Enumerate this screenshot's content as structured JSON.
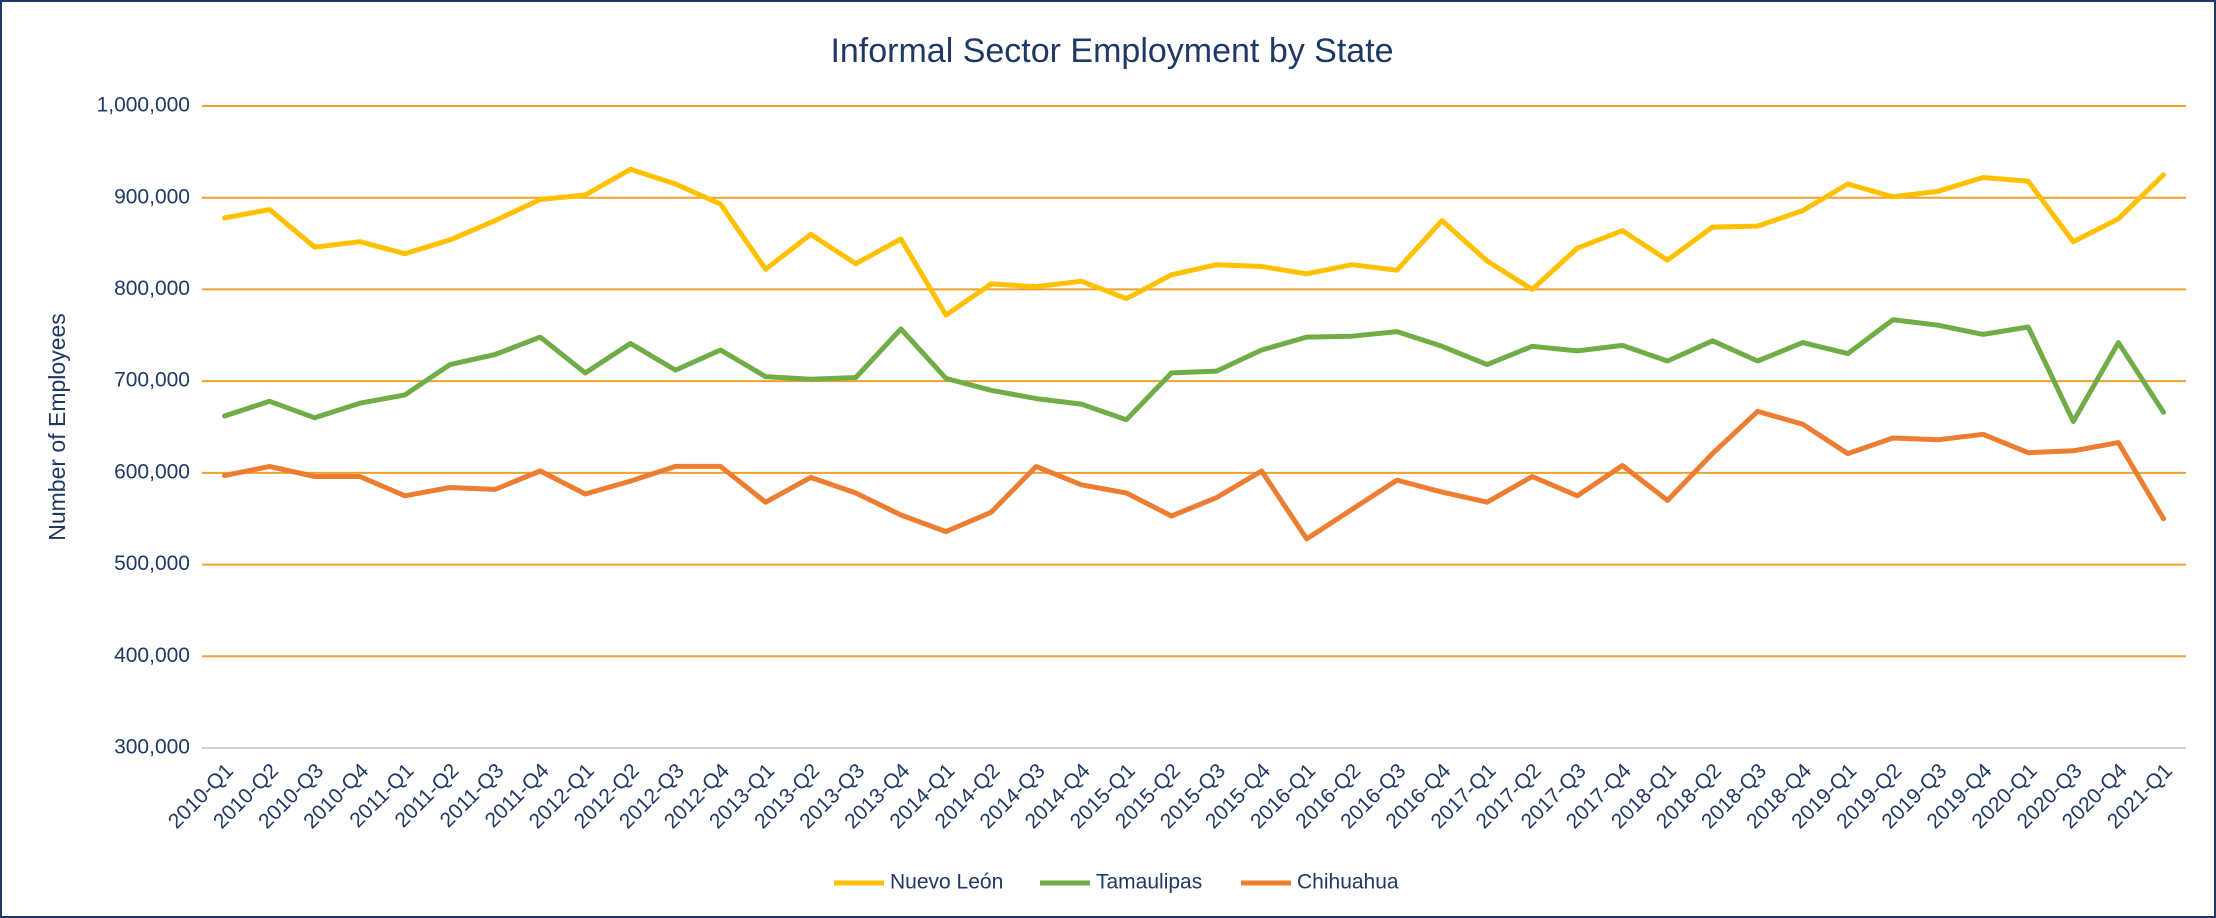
{
  "chart_data": {
    "type": "line",
    "title": "Informal Sector Employment by State",
    "y_label": "Number of Employees",
    "categories": [
      "2010-Q1",
      "2010-Q2",
      "2010-Q3",
      "2010-Q4",
      "2011-Q1",
      "2011-Q2",
      "2011-Q3",
      "2011-Q4",
      "2012-Q1",
      "2012-Q2",
      "2012-Q3",
      "2012-Q4",
      "2013-Q1",
      "2013-Q2",
      "2013-Q3",
      "2013-Q4",
      "2014-Q1",
      "2014-Q2",
      "2014-Q3",
      "2014-Q4",
      "2015-Q1",
      "2015-Q2",
      "2015-Q3",
      "2015-Q4",
      "2016-Q1",
      "2016-Q2",
      "2016-Q3",
      "2016-Q4",
      "2017-Q1",
      "2017-Q2",
      "2017-Q3",
      "2017-Q4",
      "2018-Q1",
      "2018-Q2",
      "2018-Q3",
      "2018-Q4",
      "2019-Q1",
      "2019-Q2",
      "2019-Q3",
      "2019-Q4",
      "2020-Q1",
      "2020-Q3",
      "2020-Q4",
      "2021-Q1"
    ],
    "series": [
      {
        "name": "Nuevo León",
        "color": "#ffc000",
        "values": [
          878000,
          887000,
          846000,
          852000,
          839000,
          854000,
          875000,
          898000,
          903000,
          931000,
          915000,
          893000,
          822000,
          860000,
          828000,
          855000,
          772000,
          806000,
          803000,
          809000,
          790000,
          816000,
          827000,
          825000,
          817000,
          827000,
          821000,
          875000,
          831000,
          800000,
          845000,
          864000,
          832000,
          868000,
          869000,
          886000,
          915000,
          901000,
          907000,
          922000,
          918000,
          852000,
          877000,
          925000
        ]
      },
      {
        "name": "Tamaulipas",
        "color": "#70ad47",
        "values": [
          662000,
          678000,
          660000,
          676000,
          685000,
          718000,
          729000,
          748000,
          709000,
          741000,
          712000,
          734000,
          705000,
          702000,
          704000,
          757000,
          703000,
          690000,
          681000,
          675000,
          658000,
          709000,
          711000,
          734000,
          748000,
          749000,
          754000,
          738000,
          718000,
          738000,
          733000,
          739000,
          722000,
          744000,
          722000,
          742000,
          730000,
          767000,
          761000,
          751000,
          759000,
          656000,
          742000,
          666000
        ]
      },
      {
        "name": "Chihuahua",
        "color": "#ed7d31",
        "values": [
          597000,
          607000,
          596000,
          596000,
          575000,
          584000,
          582000,
          602000,
          577000,
          591000,
          607000,
          607000,
          568000,
          595000,
          578000,
          554000,
          536000,
          557000,
          607000,
          587000,
          578000,
          553000,
          573000,
          602000,
          528000,
          560000,
          592000,
          579000,
          568000,
          596000,
          575000,
          608000,
          570000,
          621000,
          667000,
          653000,
          621000,
          638000,
          636000,
          642000,
          622000,
          624000,
          633000,
          550000
        ]
      }
    ],
    "ylim": [
      300000,
      1000000
    ],
    "yticks": [
      {
        "value": 300000,
        "label": "300,000"
      },
      {
        "value": 400000,
        "label": "400,000"
      },
      {
        "value": 500000,
        "label": "500,000"
      },
      {
        "value": 600000,
        "label": "600,000"
      },
      {
        "value": 700000,
        "label": "700,000"
      },
      {
        "value": 800000,
        "label": "800,000"
      },
      {
        "value": 900000,
        "label": "900,000"
      },
      {
        "value": 1000000,
        "label": "1,000,000"
      }
    ],
    "grid": true,
    "grid_color": "#f0a030",
    "legend": "bottom"
  }
}
